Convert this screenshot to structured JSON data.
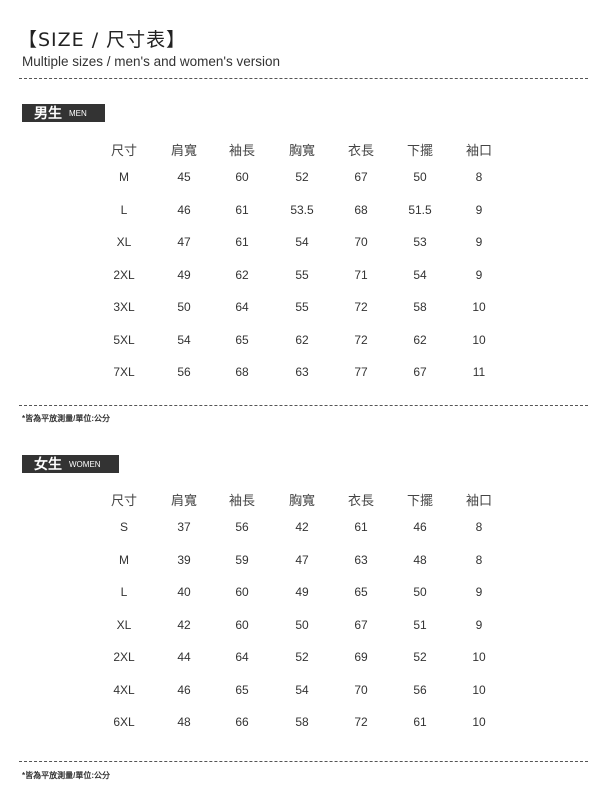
{
  "title": "【SIZE / 尺寸表】",
  "subtitle": "Multiple sizes / men's and women's version",
  "sections": [
    {
      "label_zh": "男生",
      "label_en": "MEN",
      "headers": [
        "尺寸",
        "肩寬",
        "袖長",
        "胸寬",
        "衣長",
        "下擺",
        "袖口"
      ],
      "rows": [
        [
          "M",
          "45",
          "60",
          "52",
          "67",
          "50",
          "8"
        ],
        [
          "L",
          "46",
          "61",
          "53.5",
          "68",
          "51.5",
          "9"
        ],
        [
          "XL",
          "47",
          "61",
          "54",
          "70",
          "53",
          "9"
        ],
        [
          "2XL",
          "49",
          "62",
          "55",
          "71",
          "54",
          "9"
        ],
        [
          "3XL",
          "50",
          "64",
          "55",
          "72",
          "58",
          "10"
        ],
        [
          "5XL",
          "54",
          "65",
          "62",
          "72",
          "62",
          "10"
        ],
        [
          "7XL",
          "56",
          "68",
          "63",
          "77",
          "67",
          "11"
        ]
      ],
      "note": "*皆為平放測量/單位:公分"
    },
    {
      "label_zh": "女生",
      "label_en": "WOMEN",
      "headers": [
        "尺寸",
        "肩寬",
        "袖長",
        "胸寬",
        "衣長",
        "下擺",
        "袖口"
      ],
      "rows": [
        [
          "S",
          "37",
          "56",
          "42",
          "61",
          "46",
          "8"
        ],
        [
          "M",
          "39",
          "59",
          "47",
          "63",
          "48",
          "8"
        ],
        [
          "L",
          "40",
          "60",
          "49",
          "65",
          "50",
          "9"
        ],
        [
          "XL",
          "42",
          "60",
          "50",
          "67",
          "51",
          "9"
        ],
        [
          "2XL",
          "44",
          "64",
          "52",
          "69",
          "52",
          "10"
        ],
        [
          "4XL",
          "46",
          "65",
          "54",
          "70",
          "56",
          "10"
        ],
        [
          "6XL",
          "48",
          "66",
          "58",
          "72",
          "61",
          "10"
        ]
      ],
      "note": "*皆為平放測量/單位:公分"
    }
  ]
}
